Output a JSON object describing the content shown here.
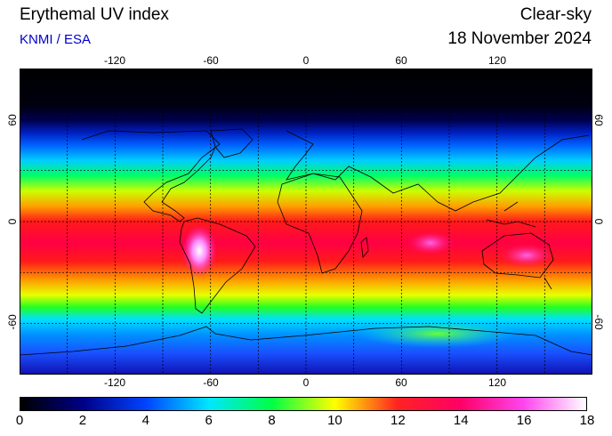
{
  "header": {
    "title": "Erythemal UV index",
    "source": "KNMI / ESA",
    "mode": "Clear-sky",
    "date": "18 November 2024"
  },
  "map": {
    "lon_range": [
      -180,
      180
    ],
    "lat_range": [
      -90,
      90
    ],
    "lon_ticks": [
      "-120",
      "-60",
      "0",
      "60",
      "120"
    ],
    "lon_tick_values": [
      -120,
      -60,
      0,
      60,
      120
    ],
    "lat_ticks": [
      "60",
      "0",
      "-60"
    ],
    "lat_tick_values": [
      60,
      0,
      -60
    ],
    "graticule_lon_step": 30,
    "graticule_lat_step": 30,
    "grid": true
  },
  "colorbar": {
    "min": 0,
    "max": 18,
    "labels": [
      "0",
      "2",
      "4",
      "6",
      "8",
      "10",
      "12",
      "14",
      "16",
      "18"
    ],
    "label_values": [
      0,
      2,
      4,
      6,
      8,
      10,
      12,
      14,
      16,
      18
    ],
    "stops": [
      {
        "value": 0,
        "color": "#000000"
      },
      {
        "value": 2,
        "color": "#000088"
      },
      {
        "value": 4,
        "color": "#0044ff"
      },
      {
        "value": 6,
        "color": "#00e6ff"
      },
      {
        "value": 8,
        "color": "#00ff44"
      },
      {
        "value": 10,
        "color": "#ffff00"
      },
      {
        "value": 12,
        "color": "#ff2222"
      },
      {
        "value": 14,
        "color": "#ff0066"
      },
      {
        "value": 16,
        "color": "#ff44ee"
      },
      {
        "value": 18,
        "color": "#ffffff"
      }
    ]
  }
}
